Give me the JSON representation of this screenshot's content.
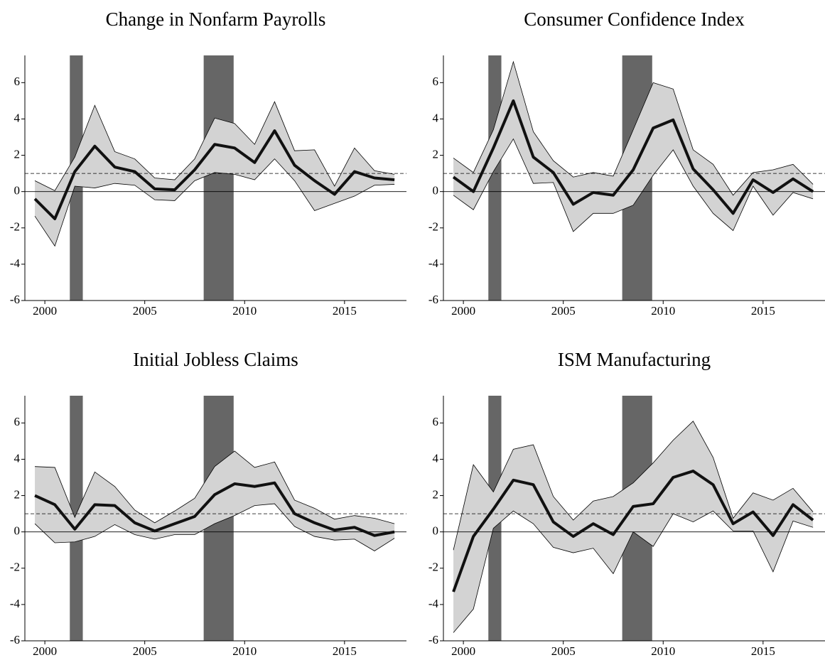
{
  "chart_data": [
    {
      "type": "line",
      "title": "Change in Nonfarm Payrolls",
      "x": [
        1999.5,
        2000.5,
        2001.5,
        2002.5,
        2003.5,
        2004.5,
        2005.5,
        2006.5,
        2007.5,
        2008.5,
        2009.5,
        2010.5,
        2011.5,
        2012.5,
        2013.5,
        2014.5,
        2015.5,
        2016.5,
        2017.5
      ],
      "values": [
        -0.4,
        -1.5,
        1.1,
        2.5,
        1.35,
        1.1,
        0.15,
        0.1,
        1.2,
        2.6,
        2.4,
        1.6,
        3.35,
        1.45,
        0.6,
        -0.15,
        1.1,
        0.75,
        0.65
      ],
      "upper": [
        0.6,
        0.05,
        1.9,
        4.75,
        2.2,
        1.8,
        0.75,
        0.65,
        1.8,
        4.05,
        3.75,
        2.6,
        4.95,
        2.25,
        2.3,
        0.3,
        2.4,
        1.15,
        0.95
      ],
      "lower": [
        -1.35,
        -3.0,
        0.3,
        0.2,
        0.45,
        0.35,
        -0.45,
        -0.5,
        0.6,
        1.05,
        0.95,
        0.65,
        1.8,
        0.6,
        -1.05,
        -0.65,
        -0.25,
        0.35,
        0.4
      ],
      "color": "#111111",
      "band_color": "#d3d3d3",
      "shaded": [
        [
          2001.25,
          2001.9
        ],
        [
          2007.95,
          2009.45
        ]
      ],
      "shade_color": "#666666",
      "hlines": [
        {
          "value": 0,
          "style": "solid"
        },
        {
          "value": 1,
          "style": "dashed"
        }
      ],
      "xlim": [
        1999,
        2018.1
      ],
      "xticks": [
        2000,
        2005,
        2010,
        2015
      ],
      "ylim": [
        -6,
        7.5
      ],
      "yticks": [
        -6,
        -4,
        -2,
        0,
        2,
        4,
        6
      ]
    },
    {
      "type": "line",
      "title": "Consumer Confidence Index",
      "x": [
        1999.5,
        2000.5,
        2001.5,
        2002.5,
        2003.5,
        2004.5,
        2005.5,
        2006.5,
        2007.5,
        2008.5,
        2009.5,
        2010.5,
        2011.5,
        2012.5,
        2013.5,
        2014.5,
        2015.5,
        2016.5,
        2017.5
      ],
      "values": [
        0.8,
        0.0,
        2.4,
        5.0,
        1.9,
        1.05,
        -0.7,
        -0.05,
        -0.2,
        1.2,
        3.5,
        3.95,
        1.25,
        0.1,
        -1.2,
        0.65,
        -0.05,
        0.7,
        0.0
      ],
      "upper": [
        1.85,
        1.05,
        3.4,
        7.15,
        3.3,
        1.7,
        0.8,
        1.05,
        0.85,
        3.4,
        6.0,
        5.65,
        2.3,
        1.5,
        -0.2,
        1.05,
        1.2,
        1.5,
        0.4
      ],
      "lower": [
        -0.2,
        -1.0,
        1.1,
        2.9,
        0.45,
        0.5,
        -2.2,
        -1.2,
        -1.2,
        -0.75,
        0.9,
        2.3,
        0.3,
        -1.2,
        -2.15,
        0.3,
        -1.3,
        -0.05,
        -0.4
      ],
      "color": "#111111",
      "band_color": "#d3d3d3",
      "shaded": [
        [
          2001.25,
          2001.9
        ],
        [
          2007.95,
          2009.45
        ]
      ],
      "shade_color": "#666666",
      "hlines": [
        {
          "value": 0,
          "style": "solid"
        },
        {
          "value": 1,
          "style": "dashed"
        }
      ],
      "xlim": [
        1999,
        2018.1
      ],
      "xticks": [
        2000,
        2005,
        2010,
        2015
      ],
      "ylim": [
        -6,
        7.5
      ],
      "yticks": [
        -6,
        -4,
        -2,
        0,
        2,
        4,
        6
      ]
    },
    {
      "type": "line",
      "title": "Initial Jobless Claims",
      "x": [
        1999.5,
        2000.5,
        2001.5,
        2002.5,
        2003.5,
        2004.5,
        2005.5,
        2006.5,
        2007.5,
        2008.5,
        2009.5,
        2010.5,
        2011.5,
        2012.5,
        2013.5,
        2014.5,
        2015.5,
        2016.5,
        2017.5
      ],
      "values": [
        2.0,
        1.5,
        0.15,
        1.5,
        1.45,
        0.5,
        0.05,
        0.45,
        0.85,
        2.05,
        2.65,
        2.5,
        2.7,
        1.0,
        0.5,
        0.1,
        0.25,
        -0.2,
        0.0
      ],
      "upper": [
        3.6,
        3.55,
        0.8,
        3.3,
        2.5,
        1.2,
        0.5,
        1.15,
        1.85,
        3.6,
        4.45,
        3.55,
        3.85,
        1.75,
        1.3,
        0.7,
        0.9,
        0.75,
        0.45
      ],
      "lower": [
        0.45,
        -0.6,
        -0.55,
        -0.25,
        0.4,
        -0.15,
        -0.4,
        -0.15,
        -0.15,
        0.45,
        0.9,
        1.45,
        1.55,
        0.3,
        -0.25,
        -0.45,
        -0.4,
        -1.05,
        -0.35
      ],
      "color": "#111111",
      "band_color": "#d3d3d3",
      "shaded": [
        [
          2001.25,
          2001.9
        ],
        [
          2007.95,
          2009.45
        ]
      ],
      "shade_color": "#666666",
      "hlines": [
        {
          "value": 0,
          "style": "solid"
        },
        {
          "value": 1,
          "style": "dashed"
        }
      ],
      "xlim": [
        1999,
        2018.1
      ],
      "xticks": [
        2000,
        2005,
        2010,
        2015
      ],
      "ylim": [
        -6,
        7.5
      ],
      "yticks": [
        -6,
        -4,
        -2,
        0,
        2,
        4,
        6
      ]
    },
    {
      "type": "line",
      "title": "ISM Manufacturing",
      "x": [
        1999.5,
        2000.5,
        2001.5,
        2002.5,
        2003.5,
        2004.5,
        2005.5,
        2006.5,
        2007.5,
        2008.5,
        2009.5,
        2010.5,
        2011.5,
        2012.5,
        2013.5,
        2014.5,
        2015.5,
        2016.5,
        2017.5
      ],
      "values": [
        -3.3,
        -0.25,
        1.25,
        2.85,
        2.6,
        0.55,
        -0.25,
        0.45,
        -0.15,
        1.4,
        1.55,
        3.0,
        3.35,
        2.6,
        0.45,
        1.1,
        -0.2,
        1.5,
        0.65
      ],
      "upper": [
        -1.0,
        3.7,
        2.2,
        4.55,
        4.8,
        1.95,
        0.65,
        1.7,
        1.95,
        2.7,
        3.8,
        5.05,
        6.1,
        4.1,
        0.75,
        2.15,
        1.75,
        2.4,
        1.1
      ],
      "lower": [
        -5.55,
        -4.25,
        0.2,
        1.15,
        0.45,
        -0.85,
        -1.15,
        -0.9,
        -2.3,
        0.0,
        -0.8,
        1.0,
        0.55,
        1.15,
        0.05,
        0.05,
        -2.2,
        0.6,
        0.25
      ],
      "color": "#111111",
      "band_color": "#d3d3d3",
      "shaded": [
        [
          2001.25,
          2001.9
        ],
        [
          2007.95,
          2009.45
        ]
      ],
      "shade_color": "#666666",
      "hlines": [
        {
          "value": 0,
          "style": "solid"
        },
        {
          "value": 1,
          "style": "dashed"
        }
      ],
      "xlim": [
        1999,
        2018.1
      ],
      "xticks": [
        2000,
        2005,
        2010,
        2015
      ],
      "ylim": [
        -6,
        7.5
      ],
      "yticks": [
        -6,
        -4,
        -2,
        0,
        2,
        4,
        6
      ]
    }
  ]
}
